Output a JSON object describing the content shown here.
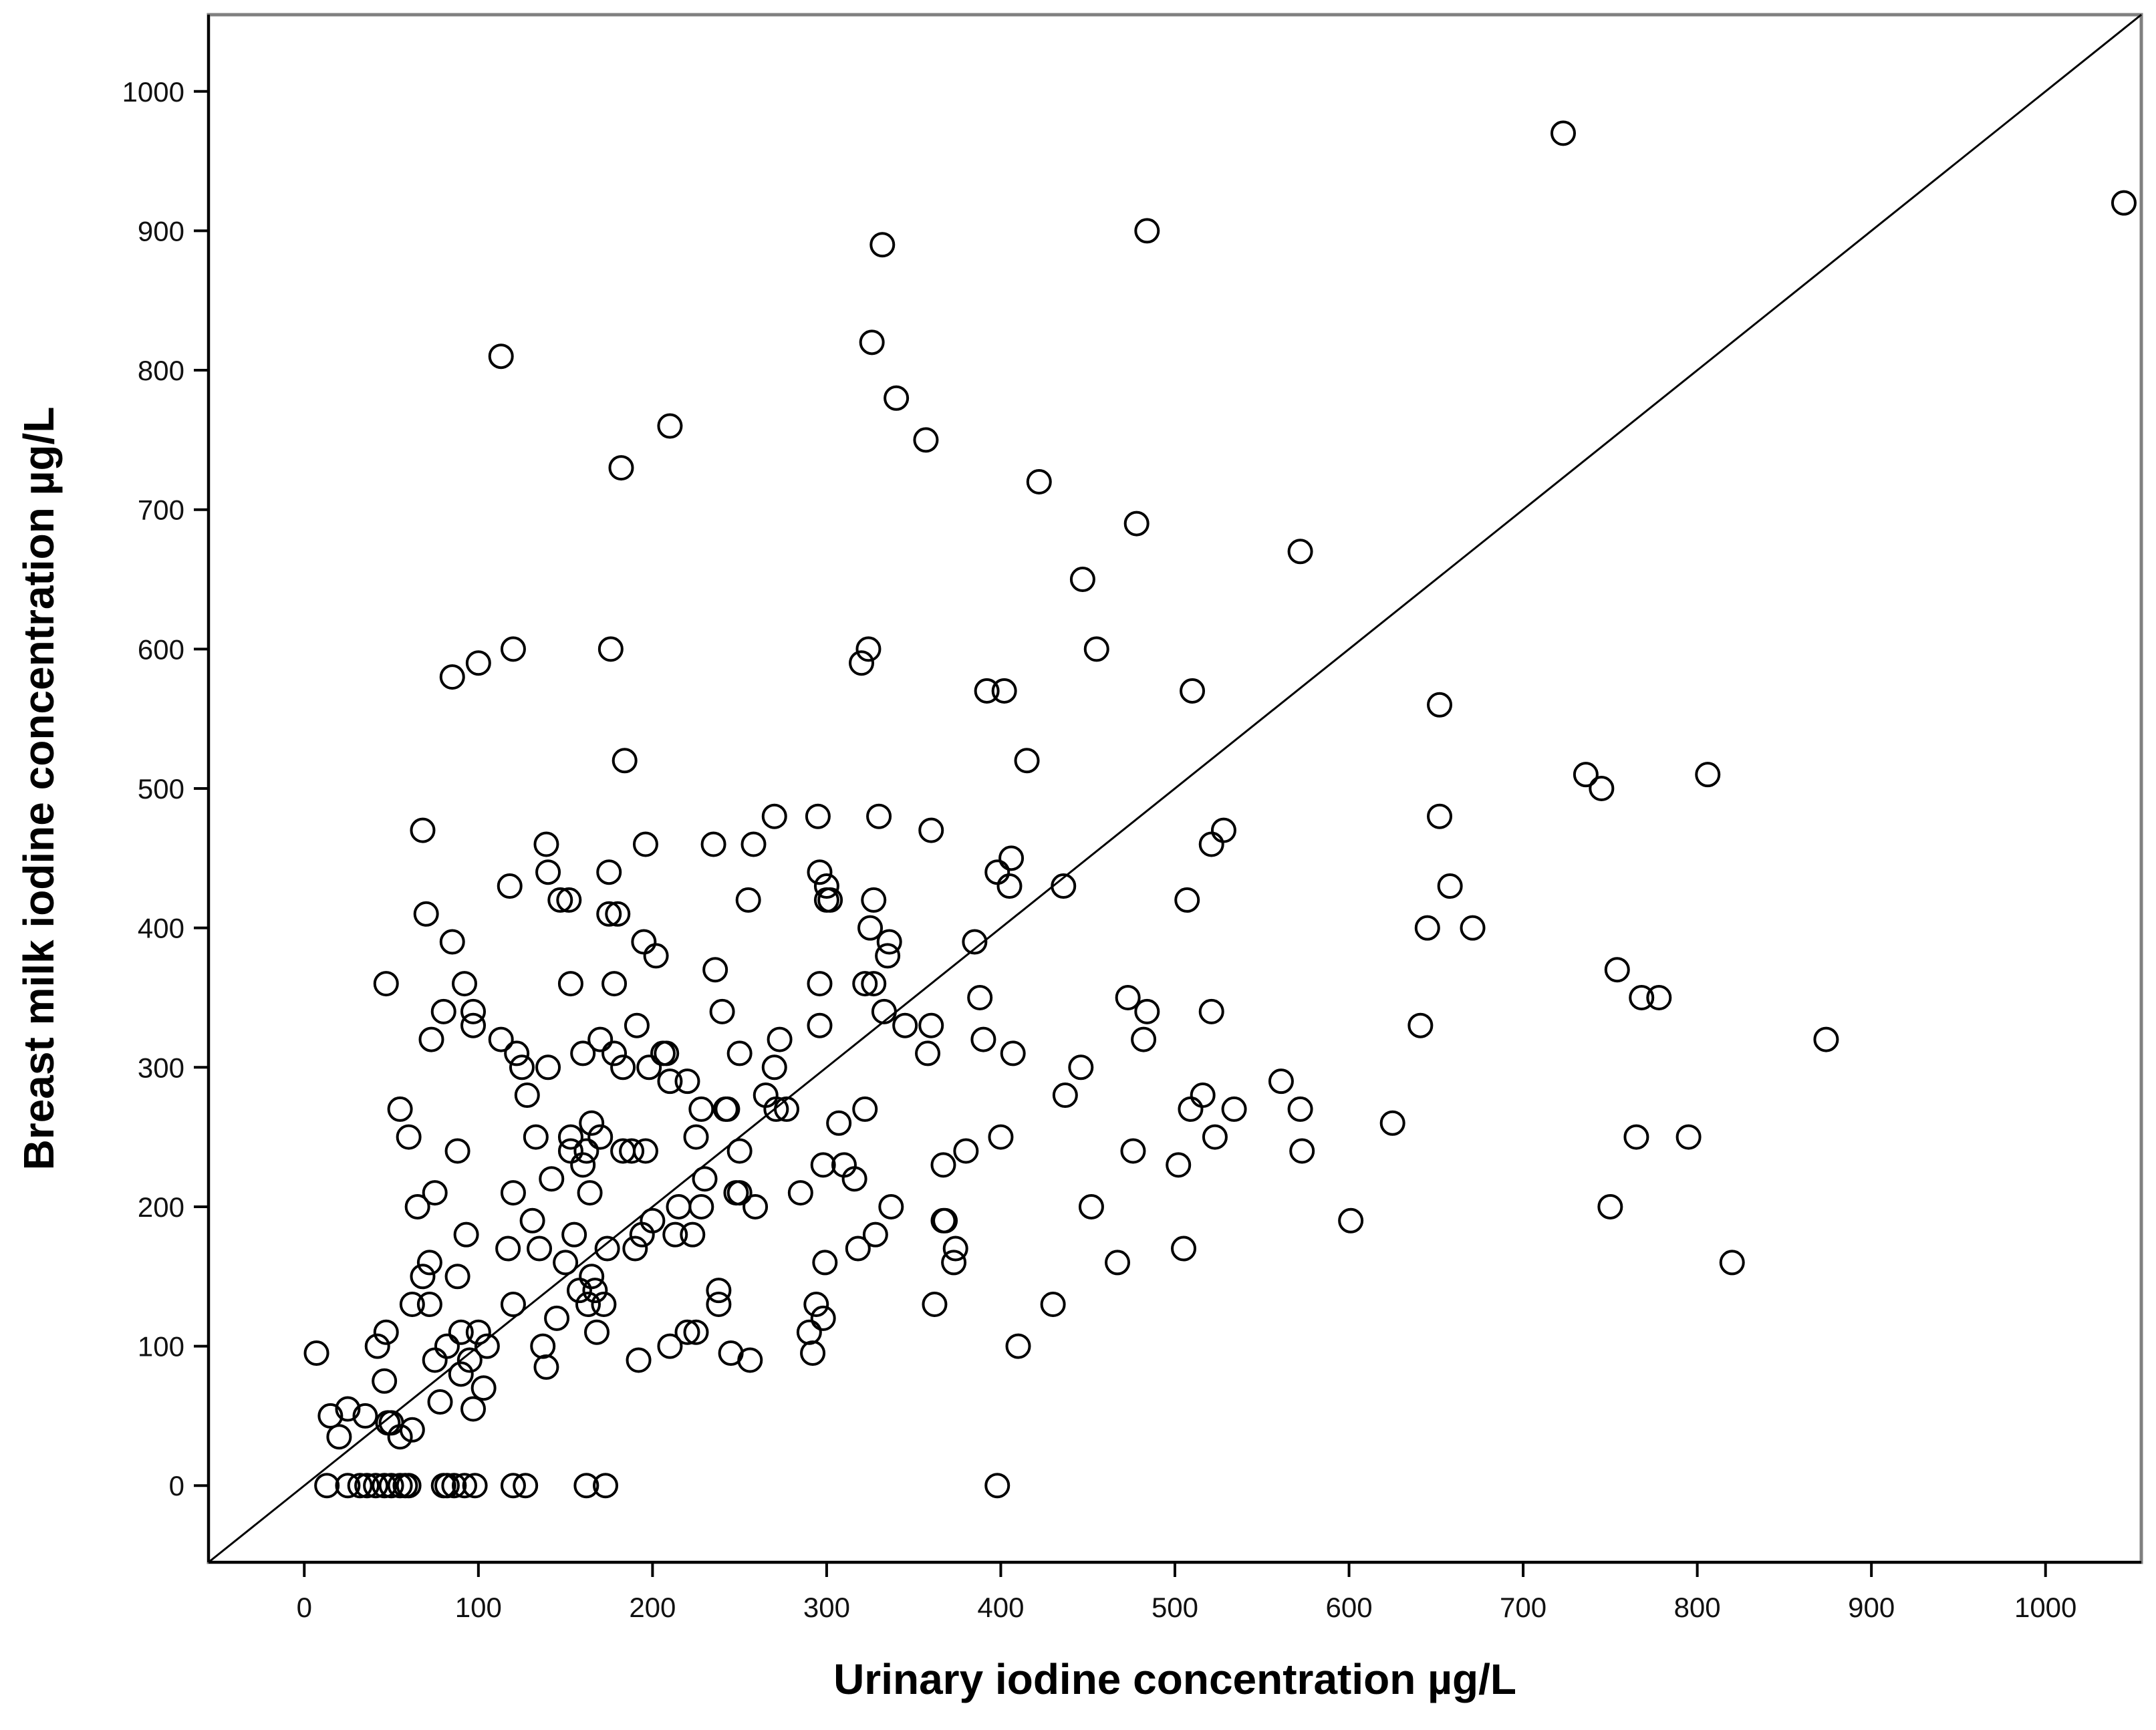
{
  "chart_data": {
    "type": "scatter",
    "title": "",
    "xlabel": "Urinary iodine concentration µg/L",
    "ylabel": "Breast milk iodine concentration µg/L",
    "xlim": [
      -55,
      1055
    ],
    "ylim": [
      -55,
      1055
    ],
    "xticks": [
      0,
      100,
      200,
      300,
      400,
      500,
      600,
      700,
      800,
      900,
      1000
    ],
    "yticks": [
      0,
      100,
      200,
      300,
      400,
      500,
      600,
      700,
      800,
      900,
      1000
    ],
    "xtick_labels": [
      "0",
      "100",
      "200",
      "300",
      "400",
      "500",
      "600",
      "700",
      "800",
      "900",
      "1000"
    ],
    "ytick_labels": [
      "0",
      "100",
      "200",
      "300",
      "400",
      "500",
      "600",
      "700",
      "800",
      "900",
      "1000"
    ],
    "grid": false,
    "reference_line": {
      "from": [
        -55,
        -55
      ],
      "to": [
        1055,
        1055
      ]
    },
    "marker": "open-circle",
    "colors": {
      "marker": "#000000",
      "line": "#000000",
      "frame": "#808080",
      "axis": "#000000"
    },
    "points": [
      [
        7,
        95
      ],
      [
        15,
        50
      ],
      [
        20,
        35
      ],
      [
        25,
        55
      ],
      [
        35,
        50
      ],
      [
        42,
        100
      ],
      [
        47,
        110
      ],
      [
        46,
        75
      ],
      [
        48,
        45
      ],
      [
        55,
        35
      ],
      [
        50,
        45
      ],
      [
        55,
        270
      ],
      [
        47,
        360
      ],
      [
        60,
        250
      ],
      [
        62,
        130
      ],
      [
        62,
        40
      ],
      [
        65,
        200
      ],
      [
        68,
        470
      ],
      [
        68,
        150
      ],
      [
        70,
        410
      ],
      [
        72,
        160
      ],
      [
        72,
        130
      ],
      [
        73,
        320
      ],
      [
        75,
        210
      ],
      [
        75,
        90
      ],
      [
        78,
        60
      ],
      [
        80,
        340
      ],
      [
        82,
        100
      ],
      [
        85,
        390
      ],
      [
        85,
        580
      ],
      [
        88,
        240
      ],
      [
        88,
        150
      ],
      [
        90,
        110
      ],
      [
        90,
        80
      ],
      [
        92,
        360
      ],
      [
        93,
        180
      ],
      [
        95,
        90
      ],
      [
        97,
        340
      ],
      [
        97,
        330
      ],
      [
        97,
        55
      ],
      [
        100,
        590
      ],
      [
        100,
        110
      ],
      [
        103,
        70
      ],
      [
        105,
        100
      ],
      [
        113,
        320
      ],
      [
        113,
        810
      ],
      [
        117,
        170
      ],
      [
        118,
        430
      ],
      [
        120,
        600
      ],
      [
        120,
        210
      ],
      [
        120,
        130
      ],
      [
        122,
        310
      ],
      [
        125,
        300
      ],
      [
        128,
        280
      ],
      [
        131,
        190
      ],
      [
        133,
        250
      ],
      [
        135,
        170
      ],
      [
        137,
        100
      ],
      [
        139,
        85
      ],
      [
        139,
        460
      ],
      [
        140,
        440
      ],
      [
        140,
        300
      ],
      [
        142,
        220
      ],
      [
        145,
        120
      ],
      [
        147,
        420
      ],
      [
        150,
        160
      ],
      [
        152,
        420
      ],
      [
        153,
        360
      ],
      [
        153,
        250
      ],
      [
        153,
        240
      ],
      [
        155,
        180
      ],
      [
        158,
        140
      ],
      [
        160,
        310
      ],
      [
        160,
        230
      ],
      [
        162,
        240
      ],
      [
        163,
        130
      ],
      [
        164,
        210
      ],
      [
        165,
        260
      ],
      [
        165,
        150
      ],
      [
        167,
        140
      ],
      [
        168,
        110
      ],
      [
        170,
        320
      ],
      [
        170,
        250
      ],
      [
        172,
        130
      ],
      [
        174,
        170
      ],
      [
        175,
        440
      ],
      [
        175,
        410
      ],
      [
        176,
        600
      ],
      [
        178,
        310
      ],
      [
        178,
        360
      ],
      [
        180,
        410
      ],
      [
        182,
        730
      ],
      [
        183,
        300
      ],
      [
        183,
        240
      ],
      [
        184,
        520
      ],
      [
        188,
        240
      ],
      [
        190,
        170
      ],
      [
        191,
        330
      ],
      [
        192,
        90
      ],
      [
        194,
        180
      ],
      [
        195,
        390
      ],
      [
        196,
        240
      ],
      [
        196,
        460
      ],
      [
        198,
        300
      ],
      [
        200,
        190
      ],
      [
        202,
        380
      ],
      [
        206,
        310
      ],
      [
        208,
        310
      ],
      [
        210,
        760
      ],
      [
        210,
        100
      ],
      [
        210,
        290
      ],
      [
        213,
        180
      ],
      [
        215,
        200
      ],
      [
        220,
        290
      ],
      [
        220,
        110
      ],
      [
        223,
        180
      ],
      [
        225,
        110
      ],
      [
        225,
        250
      ],
      [
        228,
        200
      ],
      [
        228,
        270
      ],
      [
        230,
        220
      ],
      [
        235,
        460
      ],
      [
        236,
        370
      ],
      [
        238,
        140
      ],
      [
        238,
        130
      ],
      [
        240,
        340
      ],
      [
        242,
        270
      ],
      [
        243,
        270
      ],
      [
        245,
        95
      ],
      [
        248,
        210
      ],
      [
        250,
        210
      ],
      [
        250,
        310
      ],
      [
        250,
        240
      ],
      [
        255,
        420
      ],
      [
        256,
        90
      ],
      [
        258,
        460
      ],
      [
        259,
        200
      ],
      [
        265,
        280
      ],
      [
        270,
        480
      ],
      [
        270,
        300
      ],
      [
        271,
        270
      ],
      [
        273,
        320
      ],
      [
        277,
        270
      ],
      [
        285,
        210
      ],
      [
        290,
        110
      ],
      [
        292,
        95
      ],
      [
        294,
        130
      ],
      [
        295,
        480
      ],
      [
        296,
        440
      ],
      [
        296,
        330
      ],
      [
        296,
        360
      ],
      [
        298,
        230
      ],
      [
        298,
        120
      ],
      [
        299,
        160
      ],
      [
        300,
        430
      ],
      [
        300,
        420
      ],
      [
        302,
        420
      ],
      [
        307,
        260
      ],
      [
        310,
        230
      ],
      [
        316,
        220
      ],
      [
        318,
        170
      ],
      [
        320,
        590
      ],
      [
        322,
        270
      ],
      [
        322,
        360
      ],
      [
        324,
        600
      ],
      [
        325,
        400
      ],
      [
        326,
        820
      ],
      [
        327,
        420
      ],
      [
        327,
        360
      ],
      [
        328,
        180
      ],
      [
        330,
        480
      ],
      [
        332,
        890
      ],
      [
        333,
        340
      ],
      [
        335,
        380
      ],
      [
        336,
        390
      ],
      [
        337,
        200
      ],
      [
        340,
        780
      ],
      [
        345,
        330
      ],
      [
        357,
        750
      ],
      [
        358,
        310
      ],
      [
        360,
        470
      ],
      [
        360,
        330
      ],
      [
        362,
        130
      ],
      [
        367,
        190
      ],
      [
        367,
        230
      ],
      [
        368,
        190
      ],
      [
        373,
        160
      ],
      [
        374,
        170
      ],
      [
        380,
        240
      ],
      [
        385,
        390
      ],
      [
        388,
        350
      ],
      [
        390,
        320
      ],
      [
        392,
        570
      ],
      [
        398,
        440
      ],
      [
        398,
        0
      ],
      [
        400,
        250
      ],
      [
        402,
        570
      ],
      [
        405,
        430
      ],
      [
        406,
        450
      ],
      [
        407,
        310
      ],
      [
        410,
        100
      ],
      [
        415,
        520
      ],
      [
        422,
        720
      ],
      [
        430,
        130
      ],
      [
        436,
        430
      ],
      [
        437,
        280
      ],
      [
        446,
        300
      ],
      [
        447,
        650
      ],
      [
        452,
        200
      ],
      [
        455,
        600
      ],
      [
        467,
        160
      ],
      [
        473,
        350
      ],
      [
        476,
        240
      ],
      [
        478,
        690
      ],
      [
        482,
        320
      ],
      [
        484,
        340
      ],
      [
        484,
        900
      ],
      [
        502,
        230
      ],
      [
        505,
        170
      ],
      [
        507,
        420
      ],
      [
        509,
        270
      ],
      [
        510,
        570
      ],
      [
        516,
        280
      ],
      [
        521,
        340
      ],
      [
        521,
        460
      ],
      [
        523,
        250
      ],
      [
        528,
        470
      ],
      [
        534,
        270
      ],
      [
        561,
        290
      ],
      [
        572,
        670
      ],
      [
        572,
        270
      ],
      [
        573,
        240
      ],
      [
        601,
        190
      ],
      [
        625,
        260
      ],
      [
        641,
        330
      ],
      [
        645,
        400
      ],
      [
        652,
        560
      ],
      [
        652,
        480
      ],
      [
        658,
        430
      ],
      [
        671,
        400
      ],
      [
        723,
        970
      ],
      [
        736,
        510
      ],
      [
        745,
        500
      ],
      [
        750,
        200
      ],
      [
        754,
        370
      ],
      [
        765,
        250
      ],
      [
        768,
        350
      ],
      [
        778,
        350
      ],
      [
        795,
        250
      ],
      [
        806,
        510
      ],
      [
        820,
        160
      ],
      [
        874,
        320
      ],
      [
        1045,
        920
      ],
      [
        13,
        0
      ],
      [
        25,
        0
      ],
      [
        32,
        0
      ],
      [
        36,
        0
      ],
      [
        41,
        0
      ],
      [
        46,
        0
      ],
      [
        50,
        0
      ],
      [
        55,
        0
      ],
      [
        58,
        0
      ],
      [
        60,
        0
      ],
      [
        80,
        0
      ],
      [
        82,
        0
      ],
      [
        86,
        0
      ],
      [
        92,
        0
      ],
      [
        98,
        0
      ],
      [
        120,
        0
      ],
      [
        127,
        0
      ],
      [
        162,
        0
      ],
      [
        173,
        0
      ]
    ]
  }
}
